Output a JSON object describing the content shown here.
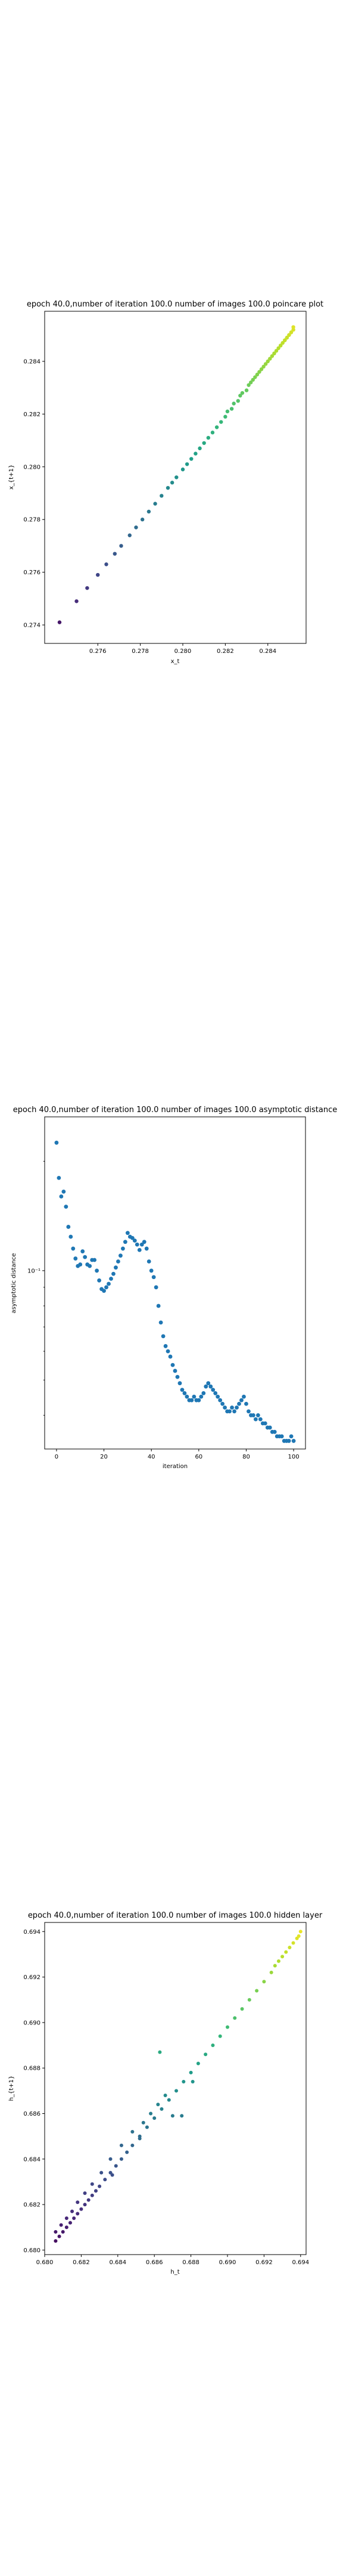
{
  "chart_data": [
    {
      "type": "scatter",
      "title": "epoch 40.0,number of iteration 100.0 number of images 100.0 poincare plot",
      "xlabel": "x_t",
      "ylabel": "x_{t+1}",
      "xlim": [
        0.2735,
        0.2858
      ],
      "ylim": [
        0.2733,
        0.2859
      ],
      "xticks": [
        0.276,
        0.278,
        0.28,
        0.282,
        0.284
      ],
      "xtick_labels": [
        "0.276",
        "0.278",
        "0.280",
        "0.282",
        "0.284"
      ],
      "yticks": [
        0.274,
        0.276,
        0.278,
        0.28,
        0.282,
        0.284
      ],
      "ytick_labels": [
        "0.274",
        "0.276",
        "0.278",
        "0.280",
        "0.282",
        "0.284"
      ],
      "yscale": "linear",
      "colormap": "viridis",
      "x": [
        0.2742,
        0.275,
        0.2755,
        0.276,
        0.2764,
        0.2768,
        0.2771,
        0.2775,
        0.2778,
        0.2781,
        0.2784,
        0.2787,
        0.279,
        0.2793,
        0.2795,
        0.2797,
        0.28,
        0.2802,
        0.2804,
        0.2806,
        0.2808,
        0.281,
        0.2812,
        0.2814,
        0.2816,
        0.2818,
        0.282,
        0.2821,
        0.2823,
        0.2824,
        0.2826,
        0.2827,
        0.2828,
        0.283,
        0.2831,
        0.2832,
        0.2833,
        0.2834,
        0.2835,
        0.2836,
        0.2837,
        0.2838,
        0.2839,
        0.284,
        0.2841,
        0.2842,
        0.2843,
        0.2843,
        0.2844,
        0.2845,
        0.2846,
        0.2846,
        0.2847,
        0.2848,
        0.2848,
        0.2849,
        0.2849,
        0.285,
        0.285,
        0.2851,
        0.2851,
        0.2852,
        0.2852,
        0.2852
      ],
      "y": [
        0.2741,
        0.2749,
        0.2754,
        0.2759,
        0.2763,
        0.2767,
        0.277,
        0.2774,
        0.2777,
        0.278,
        0.2783,
        0.2786,
        0.2789,
        0.2792,
        0.2794,
        0.2796,
        0.2799,
        0.2801,
        0.2803,
        0.2805,
        0.2807,
        0.2809,
        0.2811,
        0.2813,
        0.2815,
        0.2817,
        0.2819,
        0.2821,
        0.2822,
        0.2824,
        0.2825,
        0.2827,
        0.2828,
        0.2829,
        0.2831,
        0.2832,
        0.2833,
        0.2834,
        0.2835,
        0.2836,
        0.2837,
        0.2838,
        0.2839,
        0.284,
        0.2841,
        0.2842,
        0.2843,
        0.2843,
        0.2844,
        0.2845,
        0.2846,
        0.2846,
        0.2847,
        0.2848,
        0.2848,
        0.2849,
        0.2849,
        0.285,
        0.285,
        0.2851,
        0.2851,
        0.2852,
        0.2852,
        0.2853
      ]
    },
    {
      "type": "scatter",
      "title": "epoch 40.0,number of iteration 100.0  number of images 100.0 asymptotic distance",
      "xlabel": "iteration",
      "ylabel": "asymptotic distance",
      "xlim": [
        -5,
        105
      ],
      "ylim": [
        0.0323,
        0.265
      ],
      "yscale": "log",
      "xticks": [
        0,
        20,
        40,
        60,
        80,
        100
      ],
      "xtick_labels": [
        "0",
        "20",
        "40",
        "60",
        "80",
        "100"
      ],
      "yticks": [
        0.1
      ],
      "ytick_labels": [
        "10⁻¹"
      ],
      "color": "#1f77b4",
      "x": [
        0,
        1,
        2,
        3,
        4,
        5,
        6,
        7,
        8,
        9,
        10,
        11,
        12,
        13,
        14,
        15,
        16,
        17,
        18,
        19,
        20,
        21,
        22,
        23,
        24,
        25,
        26,
        27,
        28,
        29,
        30,
        31,
        32,
        33,
        34,
        35,
        36,
        37,
        38,
        39,
        40,
        41,
        42,
        43,
        44,
        45,
        46,
        47,
        48,
        49,
        50,
        51,
        52,
        53,
        54,
        55,
        56,
        57,
        58,
        59,
        60,
        61,
        62,
        63,
        64,
        65,
        66,
        67,
        68,
        69,
        70,
        71,
        72,
        73,
        74,
        75,
        76,
        77,
        78,
        79,
        80,
        81,
        82,
        83,
        84,
        85,
        86,
        87,
        88,
        89,
        90,
        91,
        92,
        93,
        94,
        95,
        96,
        97,
        98,
        99,
        100
      ],
      "y": [
        0.225,
        0.18,
        0.16,
        0.165,
        0.15,
        0.132,
        0.124,
        0.115,
        0.108,
        0.103,
        0.104,
        0.113,
        0.109,
        0.104,
        0.103,
        0.107,
        0.107,
        0.1,
        0.094,
        0.089,
        0.088,
        0.09,
        0.092,
        0.095,
        0.098,
        0.102,
        0.106,
        0.11,
        0.115,
        0.12,
        0.127,
        0.124,
        0.123,
        0.121,
        0.118,
        0.114,
        0.118,
        0.12,
        0.115,
        0.106,
        0.1,
        0.096,
        0.09,
        0.08,
        0.072,
        0.066,
        0.062,
        0.06,
        0.058,
        0.055,
        0.053,
        0.051,
        0.049,
        0.047,
        0.046,
        0.045,
        0.044,
        0.044,
        0.045,
        0.044,
        0.044,
        0.045,
        0.046,
        0.048,
        0.049,
        0.048,
        0.047,
        0.046,
        0.045,
        0.044,
        0.043,
        0.042,
        0.041,
        0.041,
        0.042,
        0.041,
        0.042,
        0.043,
        0.044,
        0.045,
        0.043,
        0.041,
        0.04,
        0.04,
        0.039,
        0.04,
        0.039,
        0.038,
        0.038,
        0.037,
        0.037,
        0.036,
        0.036,
        0.035,
        0.035,
        0.035,
        0.034,
        0.034,
        0.034,
        0.035,
        0.034
      ]
    },
    {
      "type": "scatter",
      "title": "epoch 40.0,number of iteration 100.0  number of images 100.0 hidden layer",
      "xlabel": "h_t",
      "ylabel": "h_{t+1}",
      "xlim": [
        0.68,
        0.6943
      ],
      "ylim": [
        0.6798,
        0.6944
      ],
      "xticks": [
        0.68,
        0.682,
        0.684,
        0.686,
        0.688,
        0.69,
        0.692,
        0.694
      ],
      "xtick_labels": [
        "0.680",
        "0.682",
        "0.684",
        "0.686",
        "0.688",
        "0.690",
        "0.692",
        "0.694"
      ],
      "yticks": [
        0.68,
        0.682,
        0.684,
        0.686,
        0.688,
        0.69,
        0.692,
        0.694
      ],
      "ytick_labels": [
        "0.680",
        "0.682",
        "0.684",
        "0.686",
        "0.688",
        "0.690",
        "0.692",
        "0.694"
      ],
      "yscale": "linear",
      "colormap": "viridis",
      "x": [
        0.6806,
        0.6808,
        0.681,
        0.6812,
        0.6814,
        0.6816,
        0.6818,
        0.682,
        0.6822,
        0.6824,
        0.6826,
        0.6828,
        0.683,
        0.6833,
        0.6836,
        0.6839,
        0.6842,
        0.6845,
        0.6848,
        0.6852,
        0.6856,
        0.686,
        0.6864,
        0.6868,
        0.6872,
        0.6876,
        0.688,
        0.6884,
        0.6888,
        0.6892,
        0.6896,
        0.69,
        0.6904,
        0.6908,
        0.6912,
        0.6916,
        0.692,
        0.6924,
        0.6926,
        0.6928,
        0.693,
        0.6932,
        0.6934,
        0.6936,
        0.6938,
        0.6939,
        0.694,
        0.6806,
        0.6809,
        0.6812,
        0.6815,
        0.6818,
        0.6822,
        0.6826,
        0.6831,
        0.6836,
        0.6842,
        0.6848,
        0.6854,
        0.6858,
        0.6862,
        0.6866,
        0.6875,
        0.6852,
        0.6837,
        0.6863,
        0.687,
        0.6881
      ],
      "y": [
        0.6804,
        0.6806,
        0.6808,
        0.681,
        0.6812,
        0.6814,
        0.6816,
        0.6818,
        0.682,
        0.6822,
        0.6824,
        0.6826,
        0.6828,
        0.6831,
        0.6834,
        0.6837,
        0.684,
        0.6843,
        0.6846,
        0.685,
        0.6854,
        0.6858,
        0.6862,
        0.6866,
        0.687,
        0.6874,
        0.6878,
        0.6882,
        0.6886,
        0.689,
        0.6894,
        0.6898,
        0.6902,
        0.6906,
        0.691,
        0.6914,
        0.6918,
        0.6922,
        0.6925,
        0.6927,
        0.6929,
        0.6931,
        0.6933,
        0.6935,
        0.6937,
        0.6938,
        0.694,
        0.6808,
        0.6811,
        0.6814,
        0.6817,
        0.6821,
        0.6825,
        0.6829,
        0.6834,
        0.684,
        0.6846,
        0.6852,
        0.6856,
        0.686,
        0.6864,
        0.6868,
        0.6859,
        0.6849,
        0.6833,
        0.6887,
        0.6859,
        0.6874
      ]
    }
  ]
}
